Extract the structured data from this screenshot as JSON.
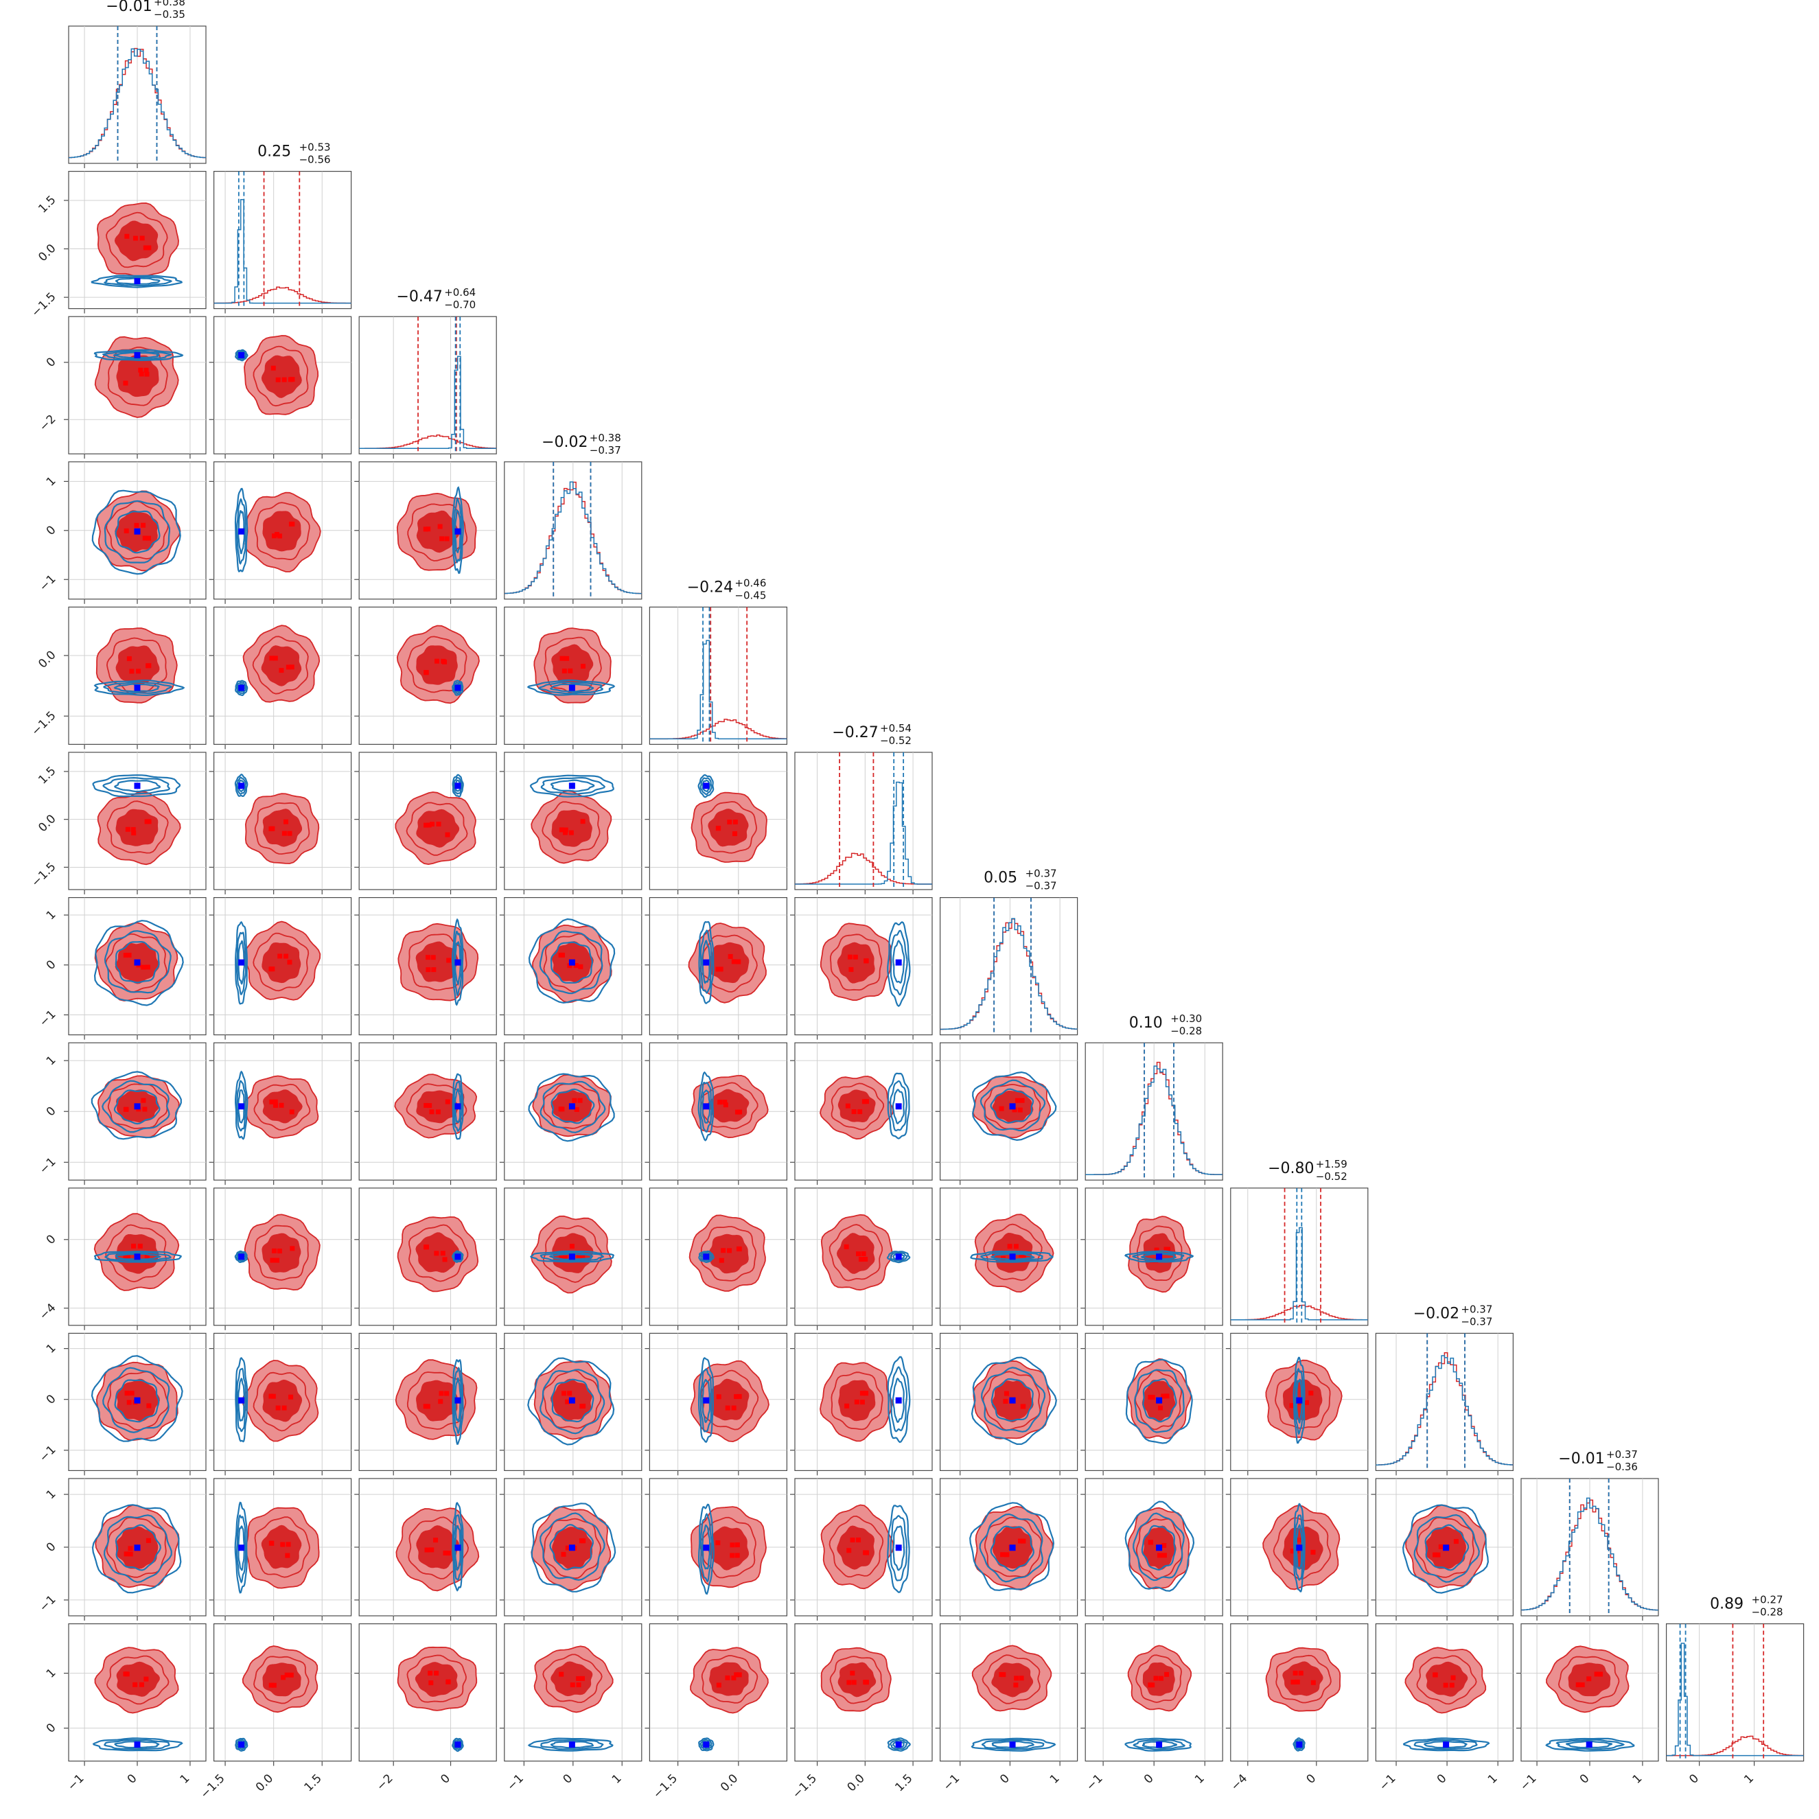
{
  "chart_data": {
    "type": "corner",
    "n_parameters": 12,
    "grid": true,
    "colors": {
      "red_fill_inner": "#d62728",
      "red_fill_outer": "#eb8f90",
      "red_line": "#d62728",
      "red_marker": "#ff0000",
      "blue_line": "#1f77b4",
      "blue_marker": "#0000ff",
      "overlap_line": "#6b2a5a"
    },
    "series": [
      {
        "color": "#d62728",
        "style": "filled-contours"
      },
      {
        "color": "#1f77b4",
        "style": "line-contours"
      }
    ],
    "parameters": [
      {
        "title_median": "−0.01",
        "title_plus": "+0.38",
        "title_minus": "−0.35",
        "range": [
          -1.3,
          1.3
        ],
        "ticks": [
          -1,
          0,
          1
        ],
        "tick_labels": [
          "−1",
          "0",
          "1"
        ],
        "red": {
          "mean": 0.0,
          "sd": 0.37
        },
        "blue": {
          "mean": 0.0,
          "sd": 0.37
        }
      },
      {
        "title_median": "0.25",
        "title_plus": "+0.53",
        "title_minus": "−0.56",
        "range": [
          -1.85,
          2.4
        ],
        "ticks": [
          -1.5,
          0.0,
          1.5
        ],
        "tick_labels": [
          "−1.5",
          "0.0",
          "1.5"
        ],
        "red": {
          "mean": 0.25,
          "sd": 0.55
        },
        "blue": {
          "mean": -1.0,
          "sd": 0.08
        }
      },
      {
        "title_median": "−0.47",
        "title_plus": "+0.64",
        "title_minus": "−0.70",
        "range": [
          -3.2,
          1.6
        ],
        "ticks": [
          -2,
          0
        ],
        "tick_labels": [
          "−2",
          "0"
        ],
        "red": {
          "mean": -0.47,
          "sd": 0.67
        },
        "blue": {
          "mean": 0.25,
          "sd": 0.08
        }
      },
      {
        "title_median": "−0.02",
        "title_plus": "+0.38",
        "title_minus": "−0.37",
        "range": [
          -1.4,
          1.4
        ],
        "ticks": [
          -1,
          0,
          1
        ],
        "tick_labels": [
          "−1",
          "0",
          "1"
        ],
        "red": {
          "mean": -0.02,
          "sd": 0.38
        },
        "blue": {
          "mean": -0.02,
          "sd": 0.38
        }
      },
      {
        "title_median": "−0.24",
        "title_plus": "+0.46",
        "title_minus": "−0.45",
        "range": [
          -2.2,
          1.2
        ],
        "ticks": [
          -1.5,
          0.0
        ],
        "tick_labels": [
          "−1.5",
          "0.0"
        ],
        "red": {
          "mean": -0.24,
          "sd": 0.45
        },
        "blue": {
          "mean": -0.8,
          "sd": 0.08
        }
      },
      {
        "title_median": "−0.27",
        "title_plus": "+0.54",
        "title_minus": "−0.52",
        "range": [
          -2.2,
          2.1
        ],
        "ticks": [
          -1.5,
          0.0,
          1.5
        ],
        "tick_labels": [
          "−1.5",
          "0.0",
          "1.5"
        ],
        "red": {
          "mean": -0.27,
          "sd": 0.53
        },
        "blue": {
          "mean": 1.05,
          "sd": 0.15
        }
      },
      {
        "title_median": "0.05",
        "title_plus": "+0.37",
        "title_minus": "−0.37",
        "range": [
          -1.4,
          1.35
        ],
        "ticks": [
          -1,
          0,
          1
        ],
        "tick_labels": [
          "−1",
          "0",
          "1"
        ],
        "red": {
          "mean": 0.05,
          "sd": 0.37
        },
        "blue": {
          "mean": 0.05,
          "sd": 0.37
        }
      },
      {
        "title_median": "0.10",
        "title_plus": "+0.30",
        "title_minus": "−0.28",
        "range": [
          -1.35,
          1.35
        ],
        "ticks": [
          -1,
          0,
          1
        ],
        "tick_labels": [
          "−1",
          "0",
          "1"
        ],
        "red": {
          "mean": 0.1,
          "sd": 0.29
        },
        "blue": {
          "mean": 0.1,
          "sd": 0.29
        }
      },
      {
        "title_median": "−0.80",
        "title_plus": "+1.59",
        "title_minus": "−0.52",
        "range": [
          -5.0,
          3.0
        ],
        "ticks": [
          -4,
          0
        ],
        "tick_labels": [
          "−4",
          "0"
        ],
        "red": {
          "mean": -0.8,
          "sd": 1.05
        },
        "blue": {
          "mean": -1.0,
          "sd": 0.14
        }
      },
      {
        "title_median": "−0.02",
        "title_plus": "+0.37",
        "title_minus": "−0.37",
        "range": [
          -1.4,
          1.3
        ],
        "ticks": [
          -1,
          0,
          1
        ],
        "tick_labels": [
          "−1",
          "0",
          "1"
        ],
        "red": {
          "mean": -0.02,
          "sd": 0.37
        },
        "blue": {
          "mean": -0.02,
          "sd": 0.37
        }
      },
      {
        "title_median": "−0.01",
        "title_plus": "+0.37",
        "title_minus": "−0.36",
        "range": [
          -1.3,
          1.3
        ],
        "ticks": [
          -1,
          0,
          1
        ],
        "tick_labels": [
          "−1",
          "0",
          "1"
        ],
        "red": {
          "mean": -0.01,
          "sd": 0.37
        },
        "blue": {
          "mean": -0.01,
          "sd": 0.37
        }
      },
      {
        "title_median": "0.89",
        "title_plus": "+0.27",
        "title_minus": "−0.28",
        "range": [
          -0.6,
          1.9
        ],
        "ticks": [
          0,
          1
        ],
        "tick_labels": [
          "0",
          "1"
        ],
        "red": {
          "mean": 0.89,
          "sd": 0.28
        },
        "blue": {
          "mean": -0.3,
          "sd": 0.05
        }
      }
    ]
  }
}
